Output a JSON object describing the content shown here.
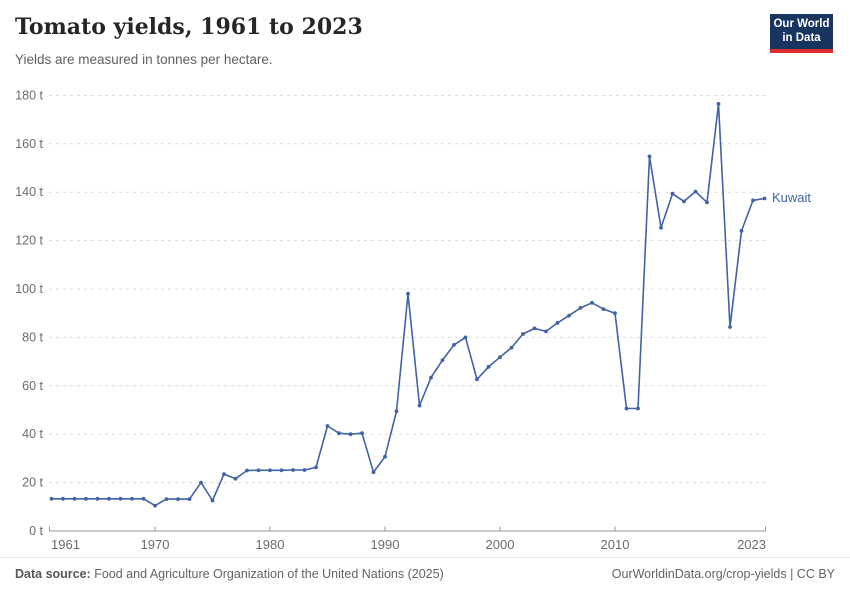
{
  "header": {
    "title": "Tomato yields, 1961 to 2023",
    "subtitle": "Yields are measured in tonnes per hectare.",
    "logo": {
      "line1": "Our World",
      "line2": "in Data",
      "bg_color": "#17355f",
      "accent_color": "#dc2b33"
    }
  },
  "chart_data": {
    "type": "line",
    "title": "Tomato yields, 1961 to 2023",
    "ylabel": "tonnes per hectare",
    "xlabel": "",
    "ylim": [
      0,
      180
    ],
    "ytick_values": [
      0,
      20,
      40,
      60,
      80,
      100,
      120,
      140,
      160,
      180
    ],
    "ytick_suffix": " t",
    "xticks": [
      1961,
      1970,
      1980,
      1990,
      2000,
      2010,
      2023
    ],
    "grid": "dashed",
    "legend_position": "end-of-line",
    "colors": {
      "line": "#4162a6",
      "grid": "#dcdcdc",
      "axis": "#999999",
      "tick_text": "#6b6b6b"
    },
    "series": [
      {
        "name": "Kuwait",
        "color": "#4162a6",
        "x": [
          1961,
          1962,
          1963,
          1964,
          1965,
          1966,
          1967,
          1968,
          1969,
          1970,
          1971,
          1972,
          1973,
          1974,
          1975,
          1976,
          1977,
          1978,
          1979,
          1980,
          1981,
          1982,
          1983,
          1984,
          1985,
          1986,
          1987,
          1988,
          1989,
          1990,
          1991,
          1992,
          1993,
          1994,
          1995,
          1996,
          1997,
          1998,
          1999,
          2000,
          2001,
          2002,
          2003,
          2004,
          2005,
          2006,
          2007,
          2008,
          2009,
          2010,
          2011,
          2012,
          2013,
          2014,
          2015,
          2016,
          2017,
          2018,
          2019,
          2020,
          2021,
          2022,
          2023
        ],
        "values": [
          13.3,
          13.3,
          13.3,
          13.3,
          13.3,
          13.3,
          13.3,
          13.3,
          13.3,
          10.5,
          13.2,
          13.2,
          13.2,
          20.0,
          12.6,
          23.5,
          21.6,
          25.0,
          25.1,
          25.1,
          25.1,
          25.2,
          25.2,
          26.3,
          43.4,
          40.4,
          40.0,
          40.4,
          24.3,
          30.7,
          49.5,
          98.0,
          51.8,
          63.4,
          70.6,
          76.9,
          80.0,
          62.7,
          67.8,
          71.8,
          75.8,
          81.4,
          83.7,
          82.5,
          86.0,
          89.0,
          92.2,
          94.3,
          91.7,
          90.0,
          50.6,
          50.6,
          154.8,
          125.3,
          139.4,
          136.2,
          140.3,
          135.8,
          176.5,
          84.3,
          124.0,
          136.6,
          137.4
        ]
      }
    ]
  },
  "footer": {
    "source_label": "Data source:",
    "source_text": "Food and Agriculture Organization of the United Nations (2025)",
    "credit": "OurWorldinData.org/crop-yields | CC BY"
  }
}
